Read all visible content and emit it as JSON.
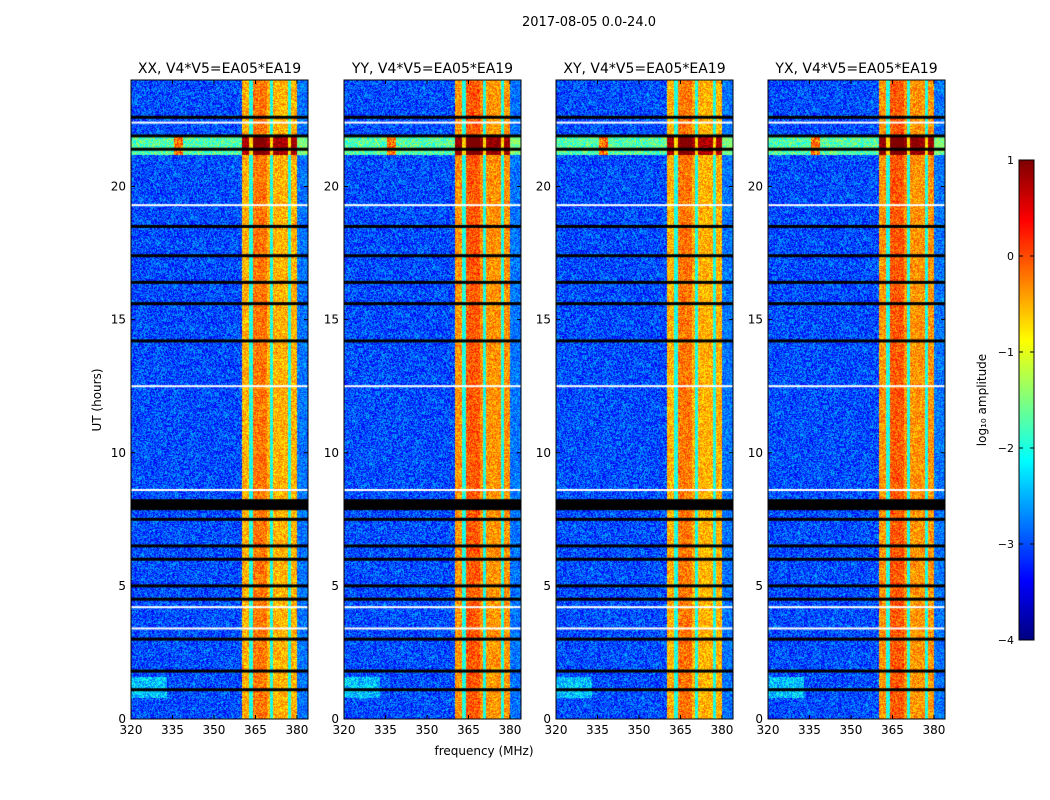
{
  "chart_data": {
    "type": "heatmap",
    "title": "2017-08-05 0.0-24.0",
    "xlabel": "frequency (MHz)",
    "ylabel": "UT (hours)",
    "xlim": [
      320,
      384
    ],
    "ylim": [
      0,
      24
    ],
    "xticks": [
      320,
      335,
      350,
      365,
      380
    ],
    "yticks": [
      0,
      5,
      10,
      15,
      20
    ],
    "panels": [
      {
        "title": "XX, V4*V5=EA05*EA19"
      },
      {
        "title": "YY, V4*V5=EA05*EA19"
      },
      {
        "title": "XY, V4*V5=EA05*EA19"
      },
      {
        "title": "YX, V4*V5=EA05*EA19"
      }
    ],
    "colorbar": {
      "label": "log₁₀ amplitude",
      "range": [
        -4,
        1
      ],
      "ticks": [
        1,
        0,
        -1,
        -2,
        -3,
        -4
      ],
      "tick_labels": [
        "1",
        "0",
        "−1",
        "−2",
        "−3",
        "−4"
      ],
      "colormap": "jet"
    },
    "value_structure": {
      "background_log10_amplitude": -3.0,
      "rfi_band_mhz": [
        360,
        380
      ],
      "rfi_band_log10_amplitude": -0.5,
      "flagged_hours_black": [
        22.6,
        21.9,
        21.4,
        18.5,
        17.4,
        16.4,
        15.6,
        14.2,
        8.2,
        7.5,
        6.5,
        6.0,
        5.0,
        4.5,
        3.0,
        1.8,
        1.1
      ],
      "flagged_hours_white": [
        22.4,
        19.3,
        12.5,
        8.6,
        4.2,
        3.4
      ]
    }
  }
}
